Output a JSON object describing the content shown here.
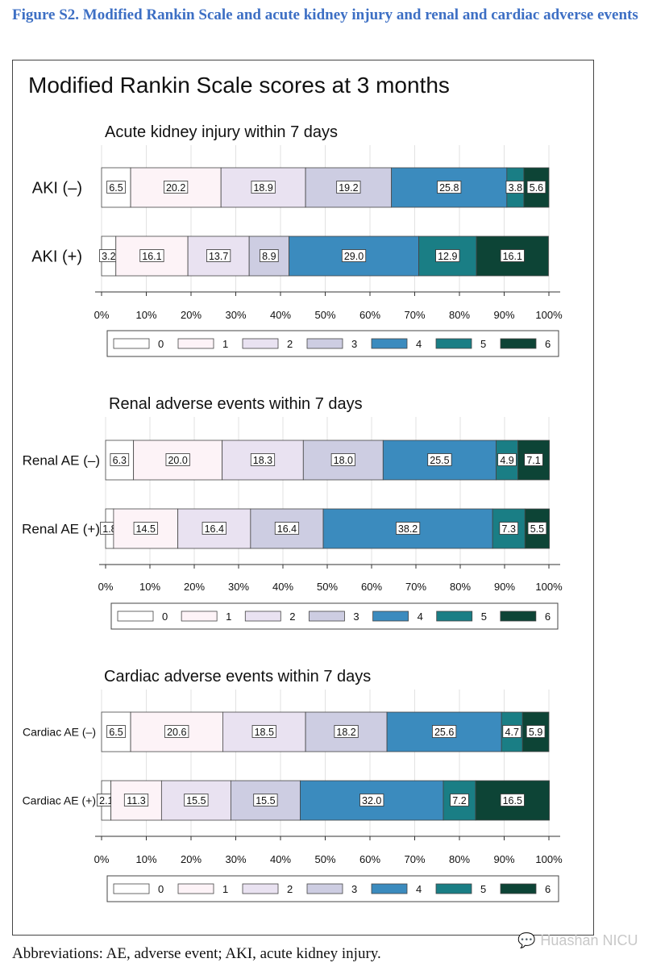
{
  "caption": "Figure S2. Modified Rankin Scale and acute kidney injury and renal and cardiac adverse events",
  "main_title": "Modified Rankin Scale scores at 3 months",
  "footnote": "Abbreviations: AE, adverse event; AKI, acute kidney injury.",
  "watermark": "Huashan NICU",
  "colors": [
    "#ffffff",
    "#fdf3f7",
    "#e9e2f1",
    "#cdcde2",
    "#3b8bbe",
    "#1a7e85",
    "#0d4436"
  ],
  "chart_data": [
    {
      "type": "bar",
      "orientation": "horizontal",
      "stacked": true,
      "title": "Acute kidney injury within 7 days",
      "categories": [
        "AKI (–)",
        "AKI (+)"
      ],
      "legend": [
        "0",
        "1",
        "2",
        "3",
        "4",
        "5",
        "6"
      ],
      "legend_position": "bottom",
      "x_ticks": [
        "0%",
        "10%",
        "20%",
        "30%",
        "40%",
        "50%",
        "60%",
        "70%",
        "80%",
        "90%",
        "100%"
      ],
      "xlim": [
        0,
        100
      ],
      "series": [
        {
          "name": "0",
          "values": [
            6.5,
            3.2
          ],
          "labels": [
            "6.5",
            "3.2"
          ]
        },
        {
          "name": "1",
          "values": [
            20.2,
            16.1
          ],
          "labels": [
            "20.2",
            "16.1"
          ]
        },
        {
          "name": "2",
          "values": [
            18.9,
            13.7
          ],
          "labels": [
            "18.9",
            "13.7"
          ]
        },
        {
          "name": "3",
          "values": [
            19.2,
            8.9
          ],
          "labels": [
            "19.2",
            "8.9"
          ]
        },
        {
          "name": "4",
          "values": [
            25.8,
            29.0
          ],
          "labels": [
            "25.8",
            "29.0"
          ]
        },
        {
          "name": "5",
          "values": [
            3.8,
            12.9
          ],
          "labels": [
            "3.8",
            "12.9"
          ]
        },
        {
          "name": "6",
          "values": [
            5.6,
            16.1
          ],
          "labels": [
            "5.6",
            "16.1"
          ]
        }
      ]
    },
    {
      "type": "bar",
      "orientation": "horizontal",
      "stacked": true,
      "title": "Renal adverse events within 7 days",
      "categories": [
        "Renal AE (–)",
        "Renal AE (+)"
      ],
      "legend": [
        "0",
        "1",
        "2",
        "3",
        "4",
        "5",
        "6"
      ],
      "legend_position": "bottom",
      "x_ticks": [
        "0%",
        "10%",
        "20%",
        "30%",
        "40%",
        "50%",
        "60%",
        "70%",
        "80%",
        "90%",
        "100%"
      ],
      "xlim": [
        0,
        100
      ],
      "series": [
        {
          "name": "0",
          "values": [
            6.3,
            1.8
          ],
          "labels": [
            "6.3",
            "1.8"
          ]
        },
        {
          "name": "1",
          "values": [
            20.0,
            14.5
          ],
          "labels": [
            "20.0",
            "14.5"
          ]
        },
        {
          "name": "2",
          "values": [
            18.3,
            16.4
          ],
          "labels": [
            "18.3",
            "16.4"
          ]
        },
        {
          "name": "3",
          "values": [
            18.0,
            16.4
          ],
          "labels": [
            "18.0",
            "16.4"
          ]
        },
        {
          "name": "4",
          "values": [
            25.5,
            38.2
          ],
          "labels": [
            "25.5",
            "38.2"
          ]
        },
        {
          "name": "5",
          "values": [
            4.9,
            7.3
          ],
          "labels": [
            "4.9",
            "7.3"
          ]
        },
        {
          "name": "6",
          "values": [
            7.1,
            5.5
          ],
          "labels": [
            "7.1",
            "5.5"
          ]
        }
      ]
    },
    {
      "type": "bar",
      "orientation": "horizontal",
      "stacked": true,
      "title": "Cardiac adverse events within 7 days",
      "categories": [
        "Cardiac AE (–)",
        "Cardiac AE (+)"
      ],
      "legend": [
        "0",
        "1",
        "2",
        "3",
        "4",
        "5",
        "6"
      ],
      "legend_position": "bottom",
      "x_ticks": [
        "0%",
        "10%",
        "20%",
        "30%",
        "40%",
        "50%",
        "60%",
        "70%",
        "80%",
        "90%",
        "100%"
      ],
      "xlim": [
        0,
        100
      ],
      "series": [
        {
          "name": "0",
          "values": [
            6.5,
            2.1
          ],
          "labels": [
            "6.5",
            "2.1"
          ]
        },
        {
          "name": "1",
          "values": [
            20.6,
            11.3
          ],
          "labels": [
            "20.6",
            "11.3"
          ]
        },
        {
          "name": "2",
          "values": [
            18.5,
            15.5
          ],
          "labels": [
            "18.5",
            "15.5"
          ]
        },
        {
          "name": "3",
          "values": [
            18.2,
            15.5
          ],
          "labels": [
            "18.2",
            "15.5"
          ]
        },
        {
          "name": "4",
          "values": [
            25.6,
            32.0
          ],
          "labels": [
            "25.6",
            "32.0"
          ]
        },
        {
          "name": "5",
          "values": [
            4.7,
            7.2
          ],
          "labels": [
            "4.7",
            "7.2"
          ]
        },
        {
          "name": "6",
          "values": [
            5.9,
            16.5
          ],
          "labels": [
            "5.9",
            "16.5"
          ]
        }
      ]
    }
  ]
}
